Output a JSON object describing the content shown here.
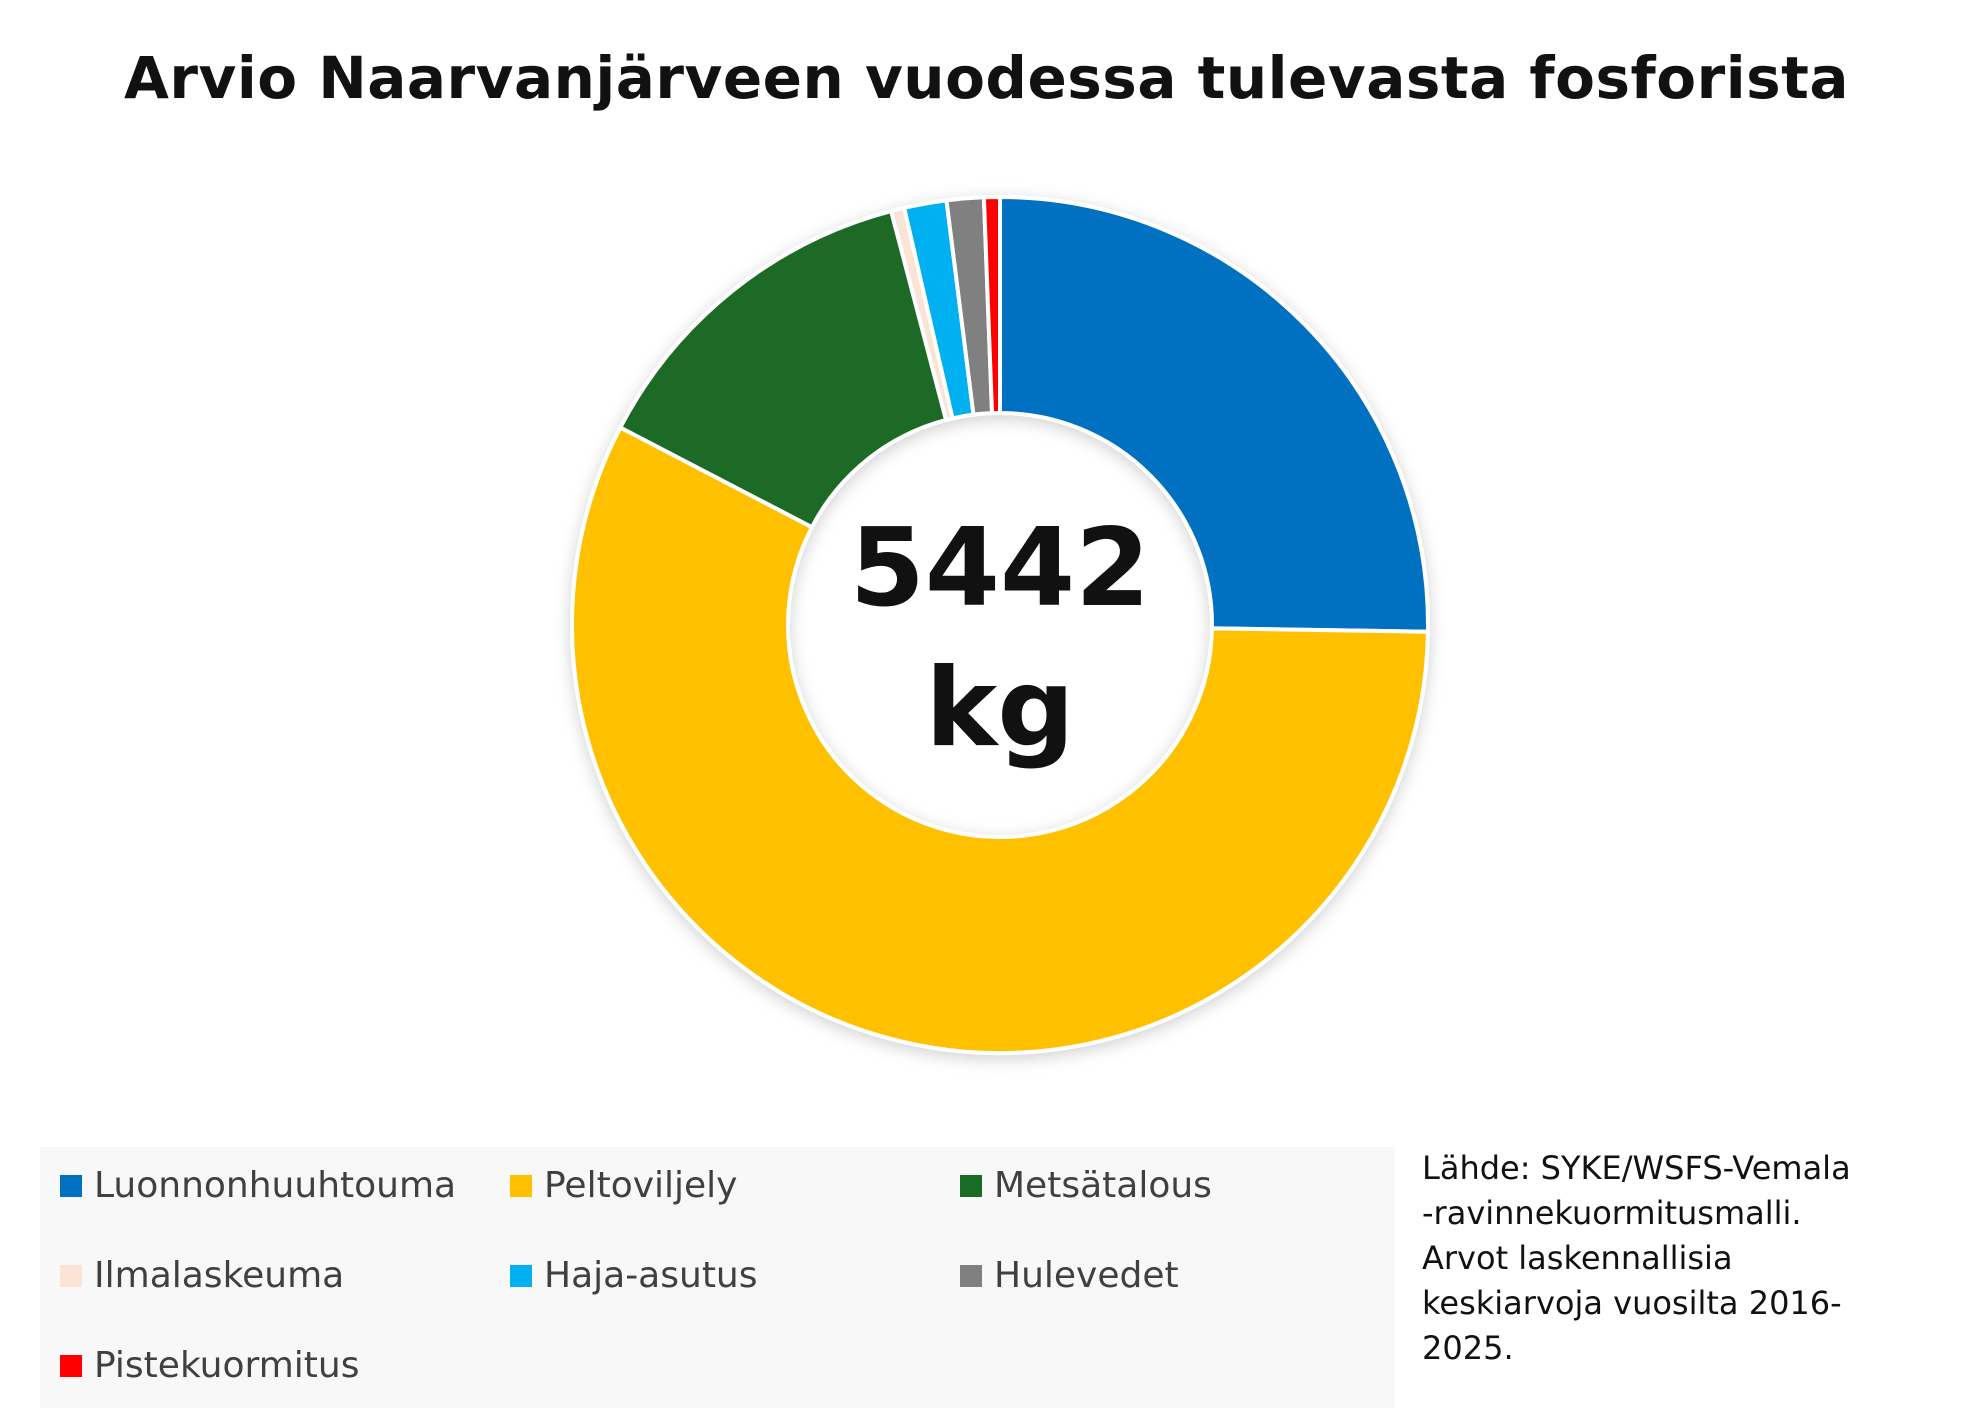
{
  "chart_data": {
    "type": "pie",
    "title": "Arvio Naarvanjärveen vuodessa tulevasta fosforista",
    "center_label": [
      "5442",
      "kg"
    ],
    "series": [
      {
        "name": "Luonnonhuuhtouma",
        "value": 25.3,
        "color": "#0070C0"
      },
      {
        "name": "Peltoviljely",
        "value": 57.5,
        "color": "#FFC000"
      },
      {
        "name": "Metsätalous",
        "value": 13.3,
        "color": "#1A6B25"
      },
      {
        "name": "Ilmalaskeuma",
        "value": 0.5,
        "color": "#FBE3D6"
      },
      {
        "name": "Haja-asutus",
        "value": 1.6,
        "color": "#00B0F0"
      },
      {
        "name": "Hulevedet",
        "value": 1.4,
        "color": "#808080"
      },
      {
        "name": "Pistekuormitus",
        "value": 0.6,
        "color": "#FF0000"
      }
    ],
    "legend": "bottom-left"
  },
  "source_note": [
    "Lähde: SYKE/WSFS-Vemala",
    "-ravinnekuormitusmalli.",
    "Arvot laskennallisia",
    "keskiarvoja vuosilta 2016-",
    "2025."
  ]
}
